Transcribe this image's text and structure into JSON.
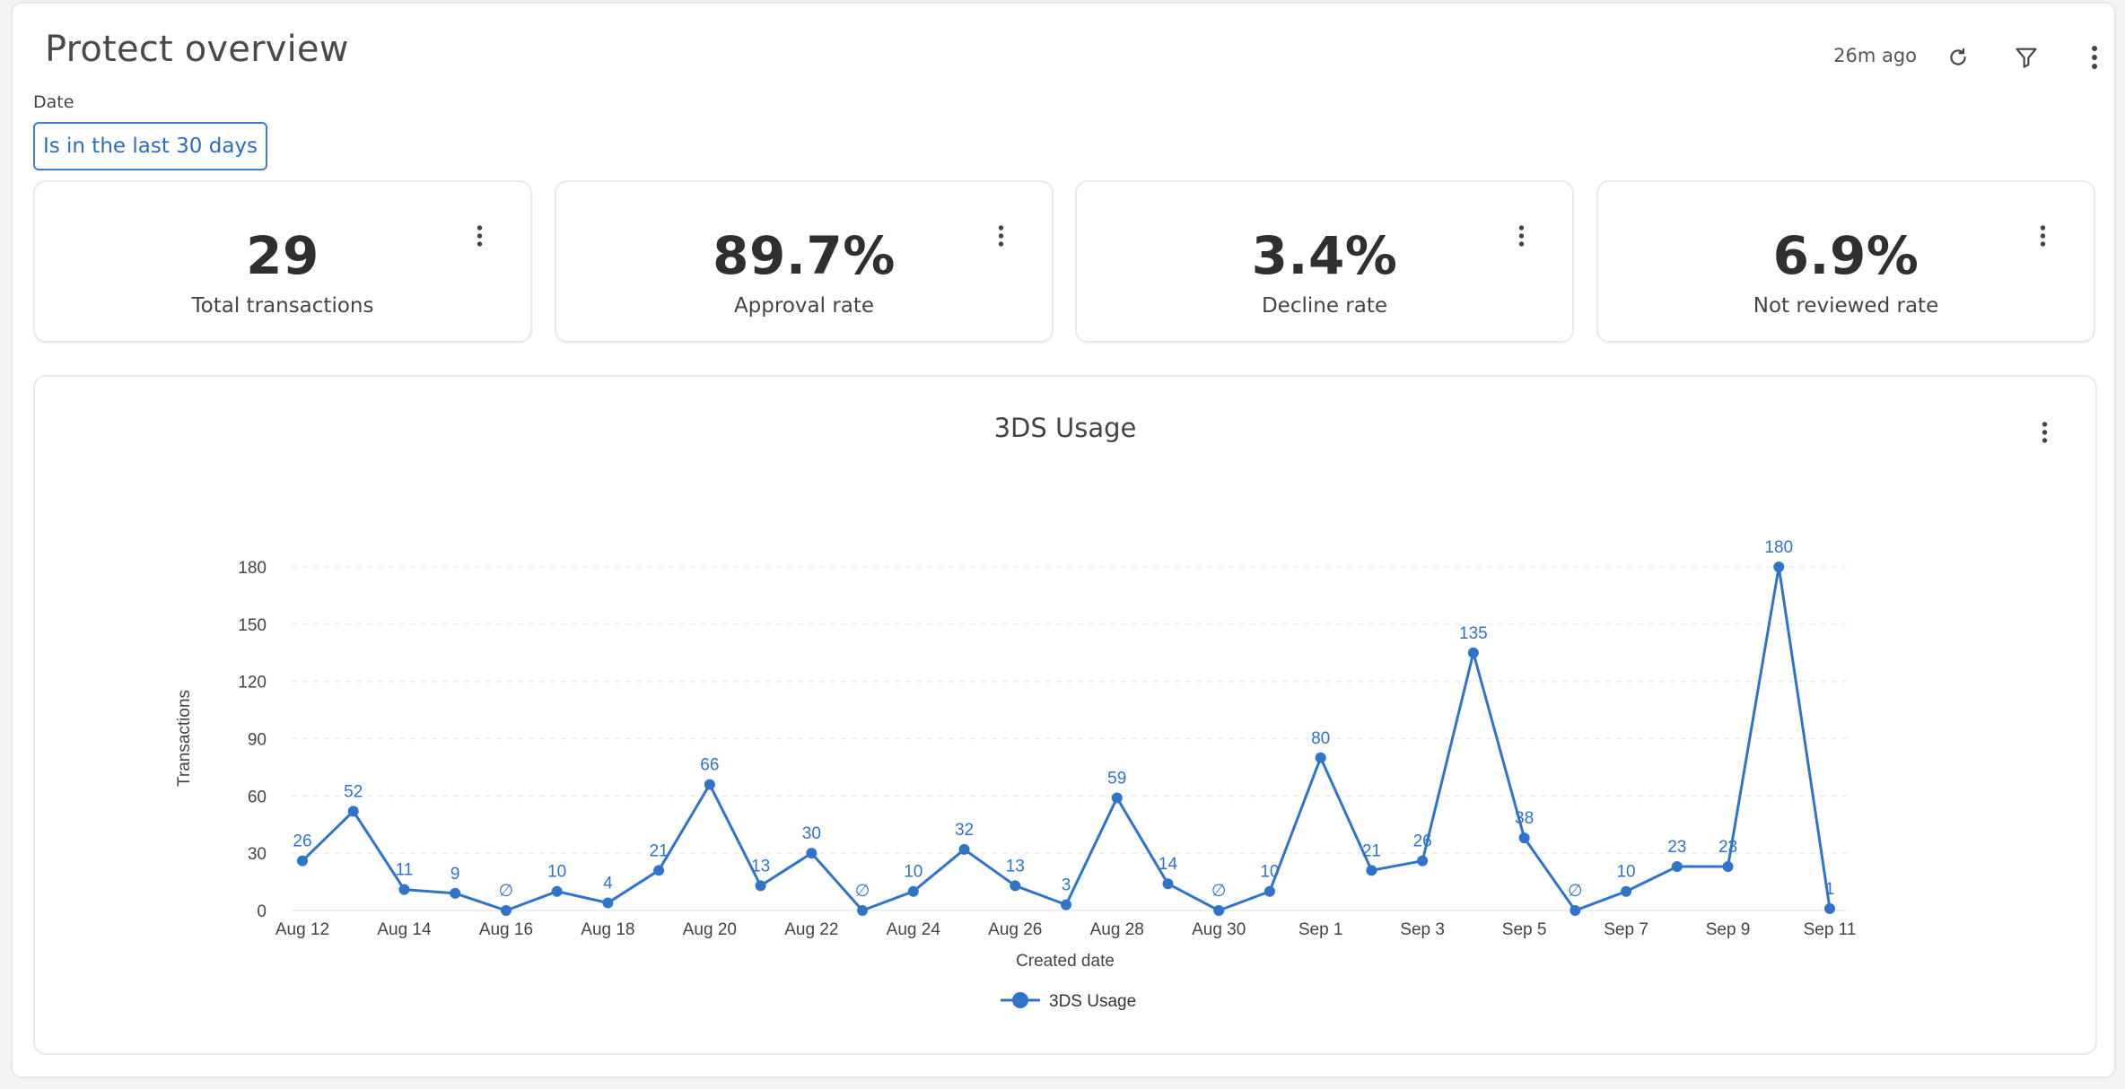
{
  "header": {
    "title": "Protect overview",
    "updated": "26m ago",
    "icons": [
      "refresh-icon",
      "filter-icon",
      "more-vertical-icon"
    ]
  },
  "filter": {
    "label": "Date",
    "value": "Is in the last 30 days"
  },
  "kpis": [
    {
      "value": "29",
      "label": "Total transactions"
    },
    {
      "value": "89.7%",
      "label": "Approval rate"
    },
    {
      "value": "3.4%",
      "label": "Decline rate"
    },
    {
      "value": "6.9%",
      "label": "Not reviewed rate"
    }
  ],
  "colors": {
    "accent": "#2d6cc0",
    "series": "#2f74c8",
    "text": "#333333",
    "border": "#e6e7ea"
  },
  "chart_data": {
    "type": "line",
    "title": "3DS Usage",
    "xlabel": "Created date",
    "ylabel": "Transactions",
    "ylim": [
      0,
      180
    ],
    "yticks": [
      0,
      30,
      60,
      90,
      120,
      150,
      180
    ],
    "grid": true,
    "legend": "bottom-center",
    "x": [
      "Aug 12",
      "Aug 13",
      "Aug 14",
      "Aug 15",
      "Aug 16",
      "Aug 17",
      "Aug 18",
      "Aug 19",
      "Aug 20",
      "Aug 21",
      "Aug 22",
      "Aug 23",
      "Aug 24",
      "Aug 25",
      "Aug 26",
      "Aug 27",
      "Aug 28",
      "Aug 29",
      "Aug 30",
      "Aug 31",
      "Sep 1",
      "Sep 2",
      "Sep 3",
      "Sep 4",
      "Sep 5",
      "Sep 6",
      "Sep 7",
      "Sep 8",
      "Sep 9",
      "Sep 10",
      "Sep 11"
    ],
    "xtick_labels": [
      "Aug 12",
      "Aug 14",
      "Aug 16",
      "Aug 18",
      "Aug 20",
      "Aug 22",
      "Aug 24",
      "Aug 26",
      "Aug 28",
      "Aug 30",
      "Sep 1",
      "Sep 3",
      "Sep 5",
      "Sep 7",
      "Sep 9",
      "Sep 11"
    ],
    "series": [
      {
        "name": "3DS Usage",
        "values": [
          26,
          52,
          11,
          9,
          0,
          10,
          4,
          21,
          66,
          13,
          30,
          0,
          10,
          32,
          13,
          3,
          59,
          14,
          0,
          10,
          80,
          21,
          26,
          135,
          38,
          0,
          10,
          23,
          23,
          180,
          1
        ],
        "labels": [
          "26",
          "52",
          "11",
          "9",
          "∅",
          "10",
          "4",
          "21",
          "66",
          "13",
          "30",
          "∅",
          "10",
          "32",
          "13",
          "3",
          "59",
          "14",
          "∅",
          "10",
          "80",
          "21",
          "26",
          "135",
          "38",
          "∅",
          "10",
          "23",
          "23",
          "180",
          "1"
        ]
      }
    ]
  }
}
